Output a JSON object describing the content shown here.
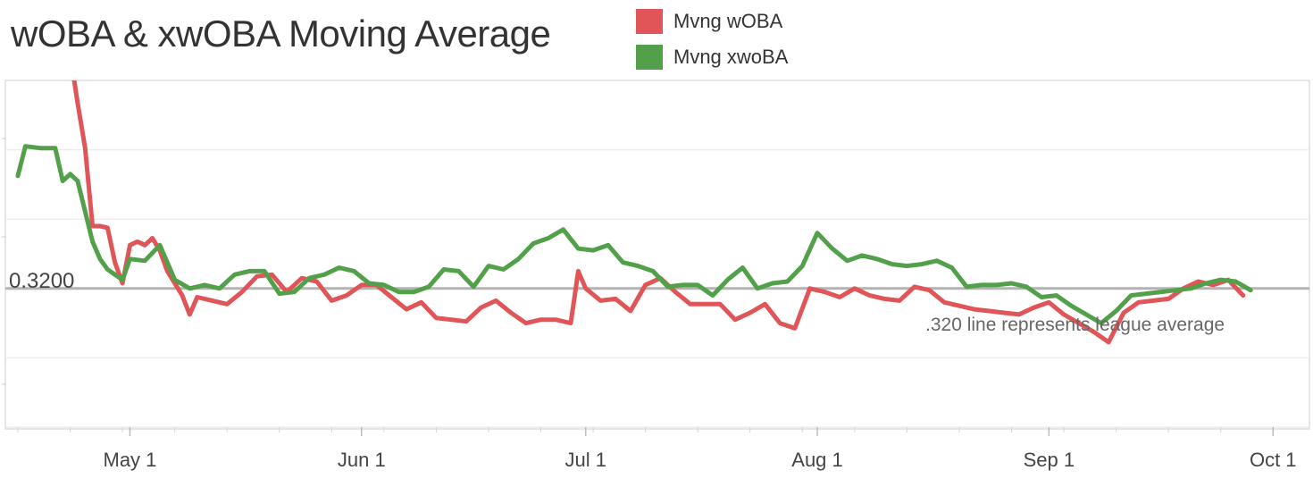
{
  "chart_data": {
    "type": "line",
    "title": "wOBA & xwOBA Moving Average",
    "xlabel": "",
    "ylabel": "",
    "x_range": [
      "2023-04-16",
      "2023-10-03"
    ],
    "ylim": [
      0.24,
      0.44
    ],
    "x_ticks": [
      {
        "date": "2023-05-01",
        "label": "May 1"
      },
      {
        "date": "2023-06-01",
        "label": "Jun 1"
      },
      {
        "date": "2023-07-01",
        "label": "Jul 1"
      },
      {
        "date": "2023-08-01",
        "label": "Aug 1"
      },
      {
        "date": "2023-09-01",
        "label": "Sep 1"
      },
      {
        "date": "2023-10-01",
        "label": "Oct 1"
      }
    ],
    "grid_y": [
      0.24,
      0.28,
      0.36,
      0.4
    ],
    "grid": true,
    "legend_position": "top",
    "reference_line": {
      "value": 0.32,
      "label": "0.3200",
      "note": ".320 line represents league average",
      "color": "#b3b3b3"
    },
    "series": [
      {
        "name": "Mvng wOBA",
        "color": "#e05558",
        "points": [
          [
            "2023-04-21",
            0.464
          ],
          [
            "2023-04-22",
            0.442
          ],
          [
            "2023-04-23",
            0.455
          ],
          [
            "2023-04-24",
            0.427
          ],
          [
            "2023-04-25",
            0.401
          ],
          [
            "2023-04-26",
            0.356
          ],
          [
            "2023-04-27",
            0.356
          ],
          [
            "2023-04-28",
            0.355
          ],
          [
            "2023-04-29",
            0.335
          ],
          [
            "2023-04-30",
            0.323
          ],
          [
            "2023-05-01",
            0.345
          ],
          [
            "2023-05-02",
            0.347
          ],
          [
            "2023-05-03",
            0.345
          ],
          [
            "2023-05-04",
            0.349
          ],
          [
            "2023-05-05",
            0.342
          ],
          [
            "2023-05-06",
            0.33
          ],
          [
            "2023-05-07",
            0.323
          ],
          [
            "2023-05-08",
            0.316
          ],
          [
            "2023-05-09",
            0.305
          ],
          [
            "2023-05-10",
            0.315
          ],
          [
            "2023-05-12",
            0.313
          ],
          [
            "2023-05-14",
            0.311
          ],
          [
            "2023-05-16",
            0.318
          ],
          [
            "2023-05-18",
            0.327
          ],
          [
            "2023-05-20",
            0.328
          ],
          [
            "2023-05-22",
            0.318
          ],
          [
            "2023-05-24",
            0.326
          ],
          [
            "2023-05-26",
            0.324
          ],
          [
            "2023-05-28",
            0.313
          ],
          [
            "2023-05-30",
            0.316
          ],
          [
            "2023-06-01",
            0.322
          ],
          [
            "2023-06-03",
            0.322
          ],
          [
            "2023-06-05",
            0.315
          ],
          [
            "2023-06-07",
            0.308
          ],
          [
            "2023-06-09",
            0.312
          ],
          [
            "2023-06-11",
            0.303
          ],
          [
            "2023-06-13",
            0.302
          ],
          [
            "2023-06-15",
            0.301
          ],
          [
            "2023-06-17",
            0.309
          ],
          [
            "2023-06-19",
            0.313
          ],
          [
            "2023-06-21",
            0.306
          ],
          [
            "2023-06-23",
            0.3
          ],
          [
            "2023-06-25",
            0.302
          ],
          [
            "2023-06-27",
            0.302
          ],
          [
            "2023-06-29",
            0.3
          ],
          [
            "2023-06-30",
            0.33
          ],
          [
            "2023-07-01",
            0.32
          ],
          [
            "2023-07-03",
            0.313
          ],
          [
            "2023-07-05",
            0.314
          ],
          [
            "2023-07-07",
            0.307
          ],
          [
            "2023-07-09",
            0.322
          ],
          [
            "2023-07-11",
            0.326
          ],
          [
            "2023-07-13",
            0.318
          ],
          [
            "2023-07-15",
            0.311
          ],
          [
            "2023-07-17",
            0.311
          ],
          [
            "2023-07-19",
            0.311
          ],
          [
            "2023-07-21",
            0.302
          ],
          [
            "2023-07-23",
            0.306
          ],
          [
            "2023-07-25",
            0.311
          ],
          [
            "2023-07-27",
            0.3
          ],
          [
            "2023-07-29",
            0.297
          ],
          [
            "2023-07-31",
            0.32
          ],
          [
            "2023-08-02",
            0.318
          ],
          [
            "2023-08-04",
            0.315
          ],
          [
            "2023-08-06",
            0.32
          ],
          [
            "2023-08-08",
            0.316
          ],
          [
            "2023-08-10",
            0.314
          ],
          [
            "2023-08-12",
            0.313
          ],
          [
            "2023-08-14",
            0.321
          ],
          [
            "2023-08-16",
            0.319
          ],
          [
            "2023-08-18",
            0.312
          ],
          [
            "2023-08-20",
            0.31
          ],
          [
            "2023-08-22",
            0.308
          ],
          [
            "2023-08-24",
            0.307
          ],
          [
            "2023-08-26",
            0.306
          ],
          [
            "2023-08-28",
            0.305
          ],
          [
            "2023-08-30",
            0.309
          ],
          [
            "2023-09-01",
            0.312
          ],
          [
            "2023-09-03",
            0.305
          ],
          [
            "2023-09-05",
            0.3
          ],
          [
            "2023-09-07",
            0.295
          ],
          [
            "2023-09-09",
            0.289
          ],
          [
            "2023-09-11",
            0.306
          ],
          [
            "2023-09-13",
            0.312
          ],
          [
            "2023-09-15",
            0.313
          ],
          [
            "2023-09-17",
            0.314
          ],
          [
            "2023-09-19",
            0.32
          ],
          [
            "2023-09-21",
            0.324
          ],
          [
            "2023-09-23",
            0.322
          ],
          [
            "2023-09-25",
            0.325
          ],
          [
            "2023-09-27",
            0.316
          ]
        ]
      },
      {
        "name": "Mvng xwoBA",
        "color": "#52a04a",
        "points": [
          [
            "2023-04-16",
            0.385
          ],
          [
            "2023-04-17",
            0.402
          ],
          [
            "2023-04-19",
            0.401
          ],
          [
            "2023-04-21",
            0.401
          ],
          [
            "2023-04-22",
            0.382
          ],
          [
            "2023-04-23",
            0.386
          ],
          [
            "2023-04-24",
            0.382
          ],
          [
            "2023-04-26",
            0.347
          ],
          [
            "2023-04-27",
            0.337
          ],
          [
            "2023-04-28",
            0.331
          ],
          [
            "2023-04-30",
            0.325
          ],
          [
            "2023-05-01",
            0.337
          ],
          [
            "2023-05-03",
            0.336
          ],
          [
            "2023-05-05",
            0.345
          ],
          [
            "2023-05-07",
            0.325
          ],
          [
            "2023-05-09",
            0.32
          ],
          [
            "2023-05-11",
            0.322
          ],
          [
            "2023-05-13",
            0.32
          ],
          [
            "2023-05-15",
            0.328
          ],
          [
            "2023-05-17",
            0.33
          ],
          [
            "2023-05-19",
            0.33
          ],
          [
            "2023-05-21",
            0.317
          ],
          [
            "2023-05-23",
            0.318
          ],
          [
            "2023-05-25",
            0.326
          ],
          [
            "2023-05-27",
            0.328
          ],
          [
            "2023-05-29",
            0.332
          ],
          [
            "2023-05-31",
            0.33
          ],
          [
            "2023-06-02",
            0.323
          ],
          [
            "2023-06-04",
            0.322
          ],
          [
            "2023-06-06",
            0.318
          ],
          [
            "2023-06-08",
            0.318
          ],
          [
            "2023-06-10",
            0.321
          ],
          [
            "2023-06-12",
            0.331
          ],
          [
            "2023-06-14",
            0.33
          ],
          [
            "2023-06-16",
            0.321
          ],
          [
            "2023-06-18",
            0.333
          ],
          [
            "2023-06-20",
            0.331
          ],
          [
            "2023-06-22",
            0.337
          ],
          [
            "2023-06-24",
            0.346
          ],
          [
            "2023-06-26",
            0.349
          ],
          [
            "2023-06-28",
            0.354
          ],
          [
            "2023-06-30",
            0.343
          ],
          [
            "2023-07-02",
            0.342
          ],
          [
            "2023-07-04",
            0.345
          ],
          [
            "2023-07-06",
            0.335
          ],
          [
            "2023-07-08",
            0.333
          ],
          [
            "2023-07-10",
            0.33
          ],
          [
            "2023-07-12",
            0.321
          ],
          [
            "2023-07-14",
            0.322
          ],
          [
            "2023-07-16",
            0.322
          ],
          [
            "2023-07-18",
            0.316
          ],
          [
            "2023-07-20",
            0.325
          ],
          [
            "2023-07-22",
            0.332
          ],
          [
            "2023-07-24",
            0.32
          ],
          [
            "2023-07-26",
            0.323
          ],
          [
            "2023-07-28",
            0.324
          ],
          [
            "2023-07-30",
            0.333
          ],
          [
            "2023-08-01",
            0.352
          ],
          [
            "2023-08-03",
            0.343
          ],
          [
            "2023-08-05",
            0.336
          ],
          [
            "2023-08-07",
            0.339
          ],
          [
            "2023-08-09",
            0.337
          ],
          [
            "2023-08-11",
            0.334
          ],
          [
            "2023-08-13",
            0.333
          ],
          [
            "2023-08-15",
            0.334
          ],
          [
            "2023-08-17",
            0.336
          ],
          [
            "2023-08-19",
            0.332
          ],
          [
            "2023-08-21",
            0.321
          ],
          [
            "2023-08-23",
            0.322
          ],
          [
            "2023-08-25",
            0.322
          ],
          [
            "2023-08-27",
            0.323
          ],
          [
            "2023-08-29",
            0.321
          ],
          [
            "2023-08-31",
            0.315
          ],
          [
            "2023-09-02",
            0.316
          ],
          [
            "2023-09-04",
            0.31
          ],
          [
            "2023-09-06",
            0.305
          ],
          [
            "2023-09-08",
            0.3
          ],
          [
            "2023-09-10",
            0.307
          ],
          [
            "2023-09-12",
            0.316
          ],
          [
            "2023-09-14",
            0.317
          ],
          [
            "2023-09-16",
            0.318
          ],
          [
            "2023-09-18",
            0.319
          ],
          [
            "2023-09-20",
            0.32
          ],
          [
            "2023-09-22",
            0.323
          ],
          [
            "2023-09-24",
            0.325
          ],
          [
            "2023-09-26",
            0.324
          ],
          [
            "2023-09-28",
            0.319
          ]
        ]
      }
    ]
  }
}
